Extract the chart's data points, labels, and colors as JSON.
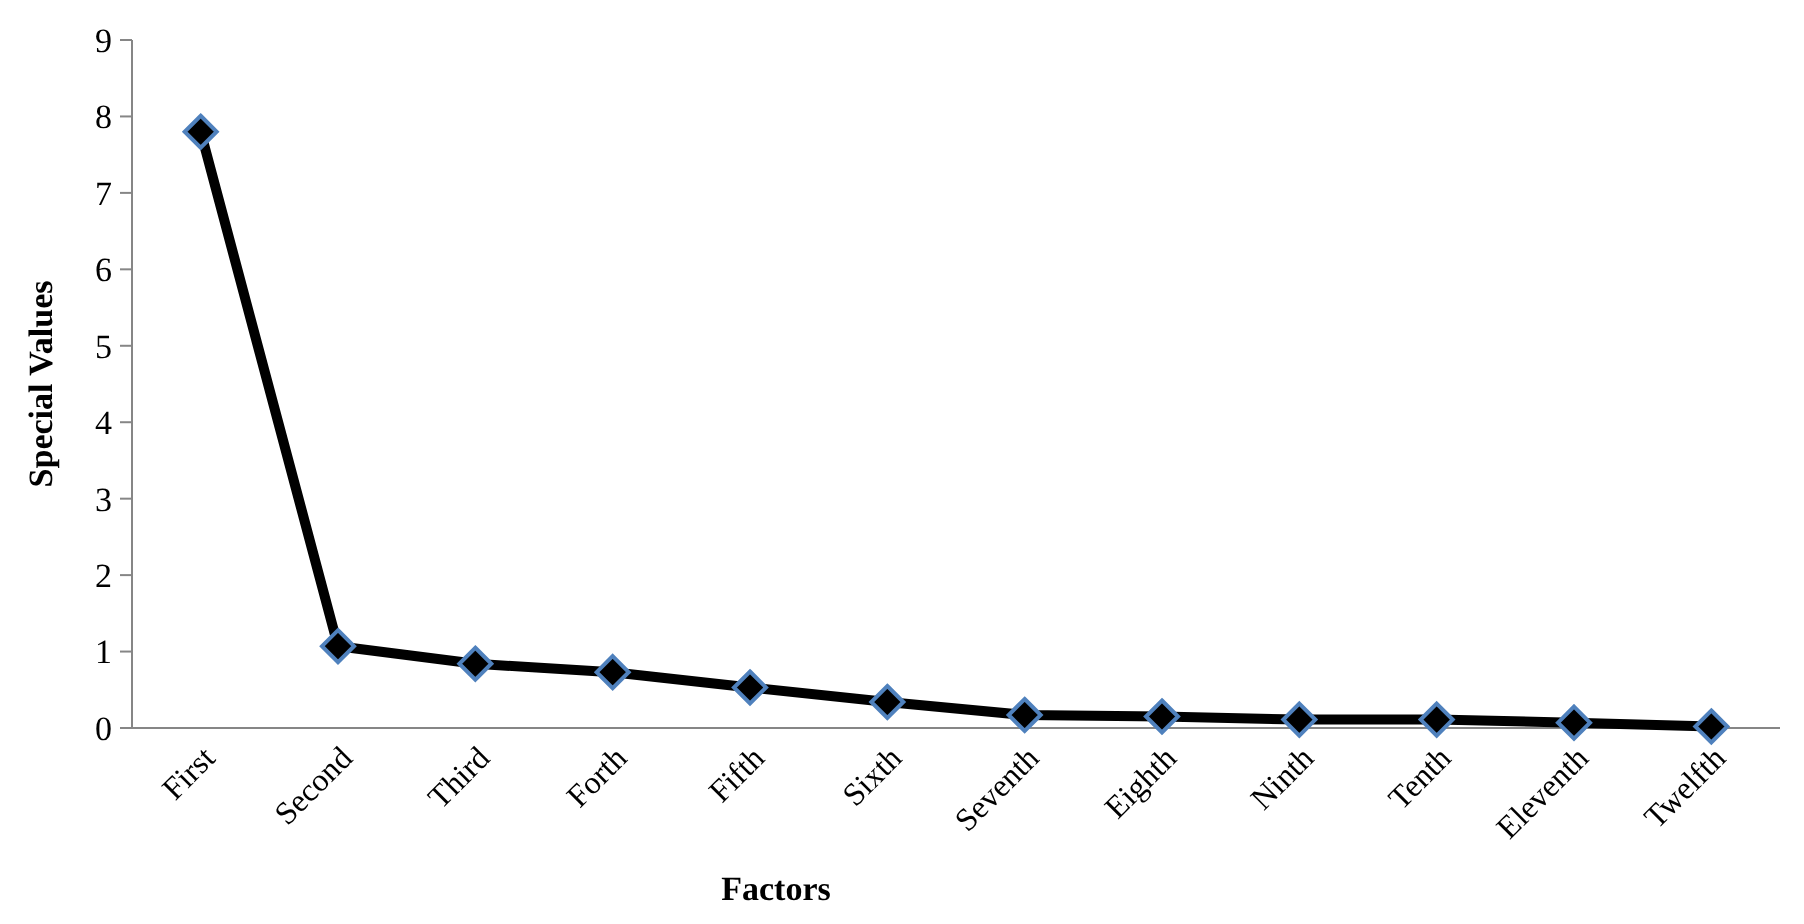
{
  "chart_data": {
    "type": "line",
    "xlabel": "Factors",
    "ylabel": "Special Values",
    "categories": [
      "First",
      "Second",
      "Third",
      "Forth",
      "Fifth",
      "Sixth",
      "Seventh",
      "Eighth",
      "Ninth",
      "Tenth",
      "Eleventh",
      "Twelfth"
    ],
    "series": [
      {
        "color": "#000000",
        "values": [
          7.8,
          1.07,
          0.84,
          0.73,
          0.53,
          0.34,
          0.17,
          0.15,
          0.11,
          0.11,
          0.07,
          0.02
        ]
      }
    ],
    "ylim": [
      0,
      9
    ],
    "yticks": [
      0,
      1,
      2,
      3,
      4,
      5,
      6,
      7,
      8,
      9
    ],
    "grid": false,
    "marker": "diamond",
    "line_style": "solid"
  }
}
